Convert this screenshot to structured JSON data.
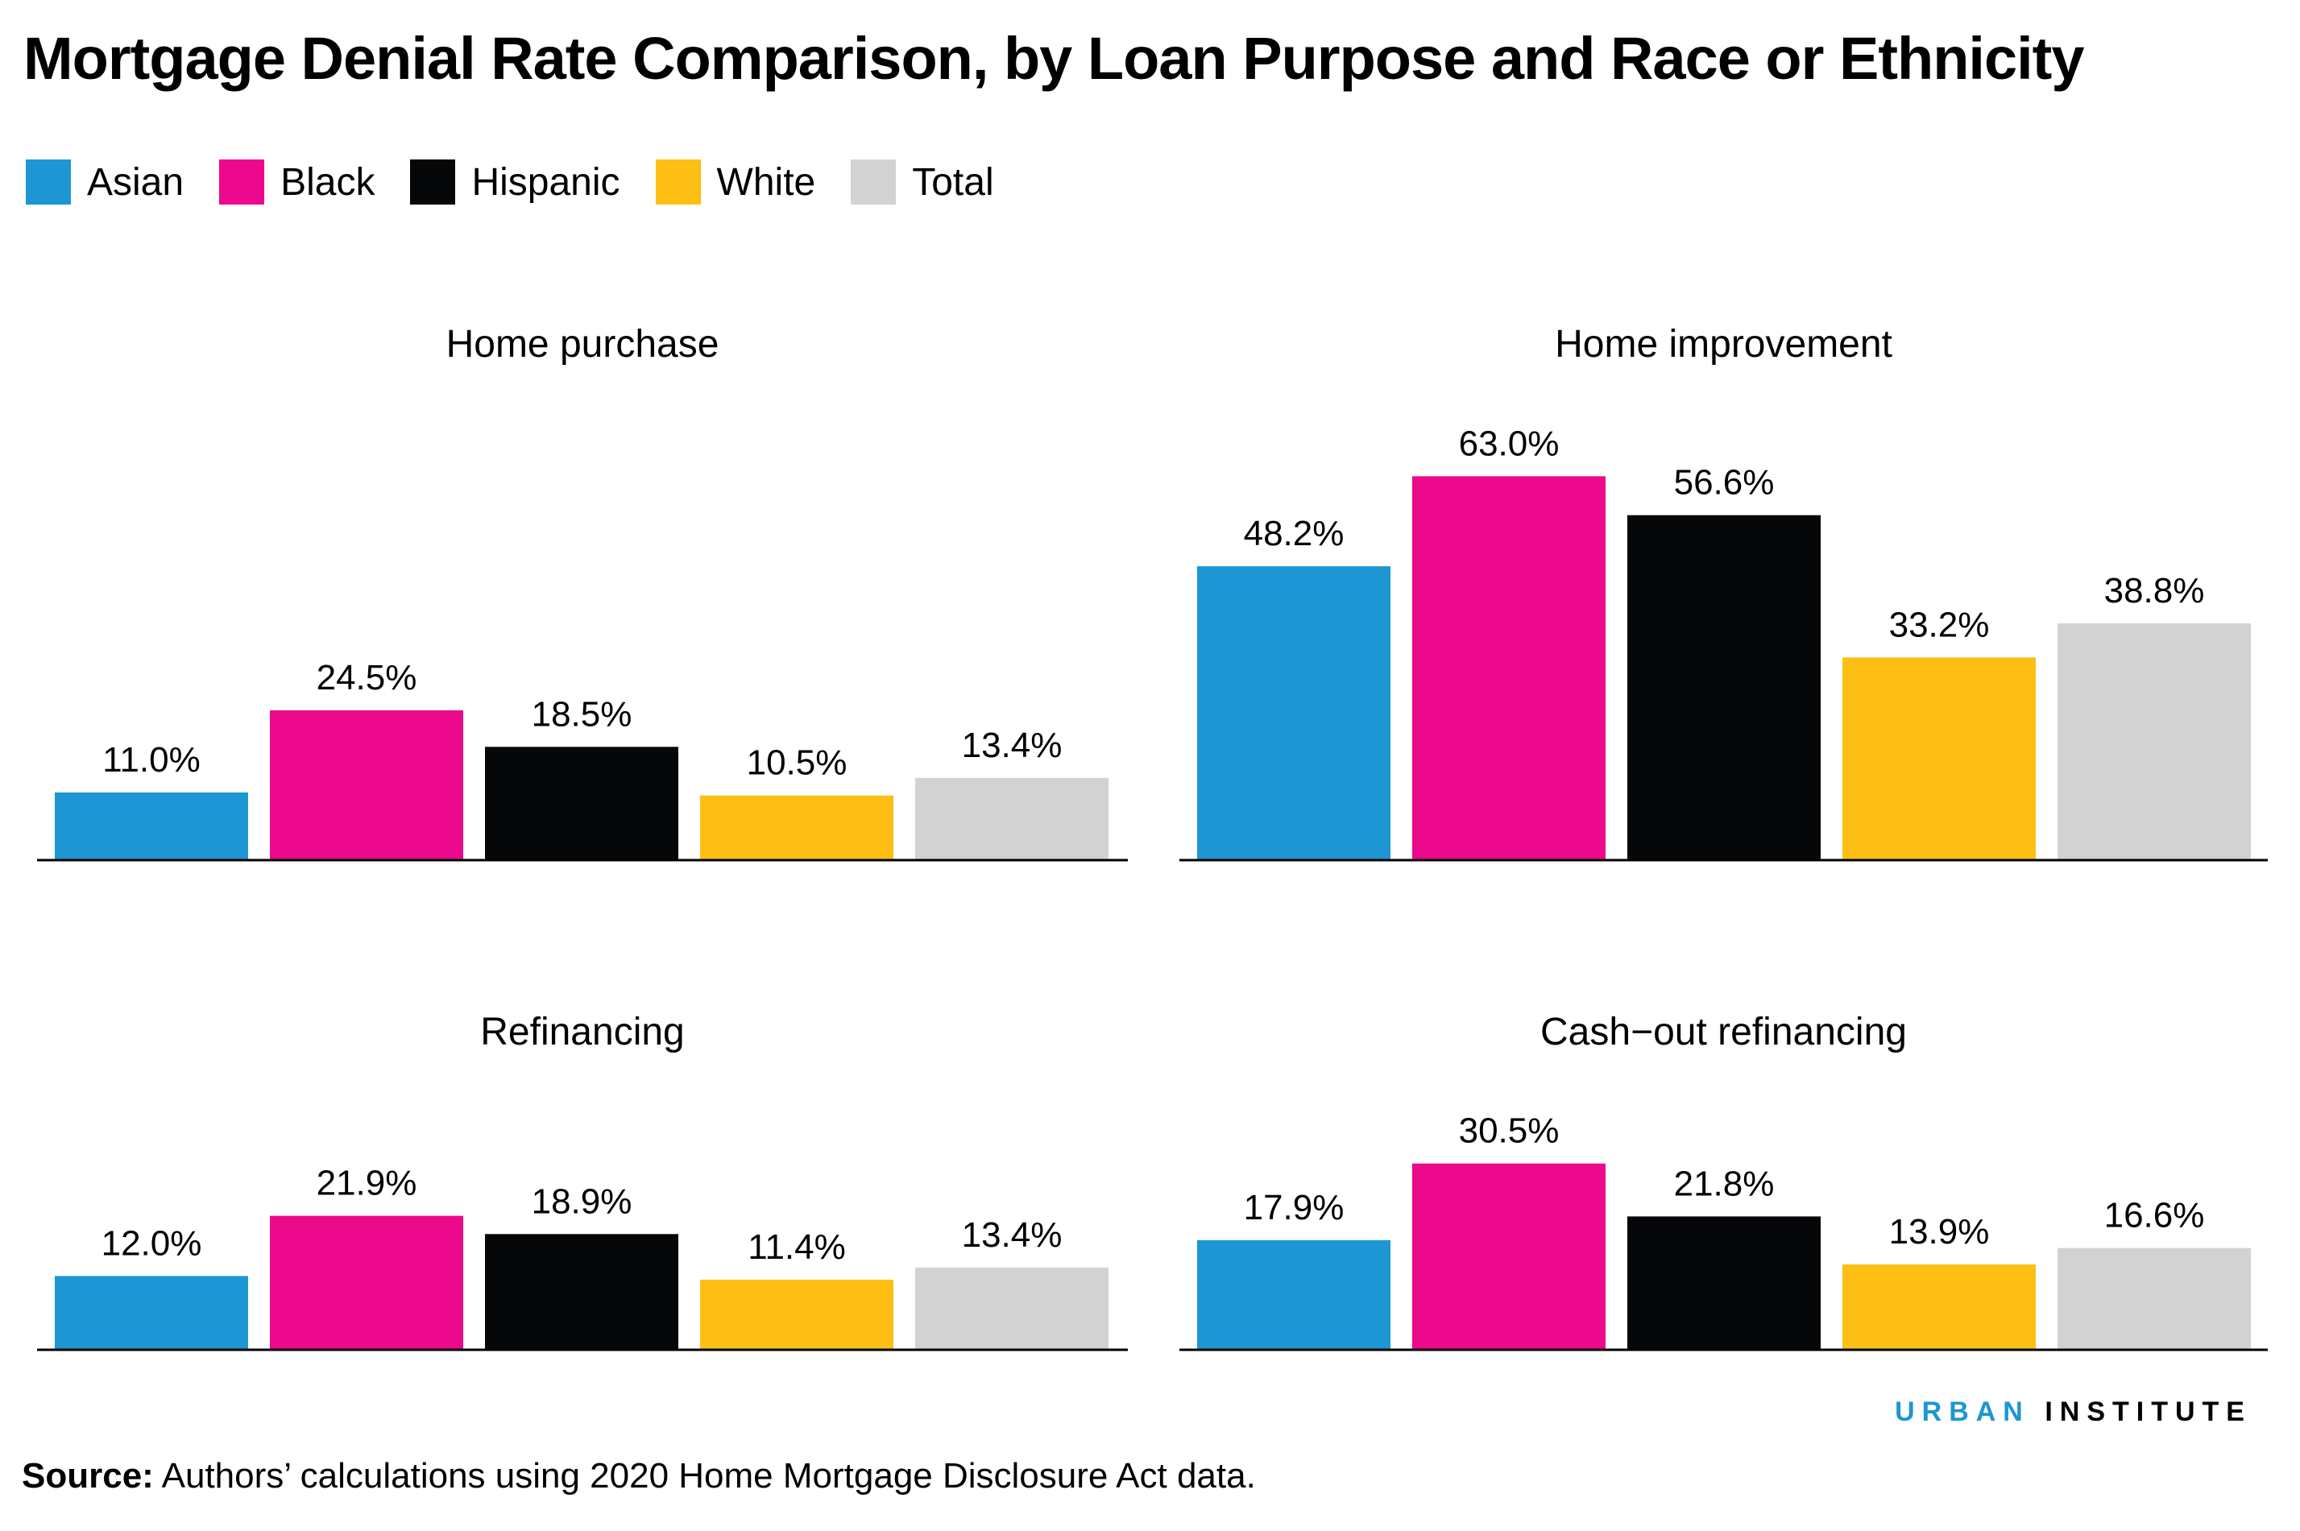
{
  "title": "Mortgage Denial Rate Comparison, by Loan Purpose and Race or Ethnicity",
  "legend": [
    {
      "label": "Asian",
      "color": "#1d96d3"
    },
    {
      "label": "Black",
      "color": "#ec098c"
    },
    {
      "label": "Hispanic",
      "color": "#060709"
    },
    {
      "label": "White",
      "color": "#fdbf14"
    },
    {
      "label": "Total",
      "color": "#d2d2d2"
    }
  ],
  "chart_data": [
    {
      "type": "bar",
      "title": "Home purchase",
      "categories": [
        "Asian",
        "Black",
        "Hispanic",
        "White",
        "Total"
      ],
      "values": [
        11.0,
        24.5,
        18.5,
        10.5,
        13.4
      ],
      "labels": [
        "11.0%",
        "24.5%",
        "18.5%",
        "10.5%",
        "13.4%"
      ],
      "ylim": [
        0,
        70
      ],
      "grid": false
    },
    {
      "type": "bar",
      "title": "Home improvement",
      "categories": [
        "Asian",
        "Black",
        "Hispanic",
        "White",
        "Total"
      ],
      "values": [
        48.2,
        63.0,
        56.6,
        33.2,
        38.8
      ],
      "labels": [
        "48.2%",
        "63.0%",
        "56.6%",
        "33.2%",
        "38.8%"
      ],
      "ylim": [
        0,
        70
      ],
      "grid": false
    },
    {
      "type": "bar",
      "title": "Refinancing",
      "categories": [
        "Asian",
        "Black",
        "Hispanic",
        "White",
        "Total"
      ],
      "values": [
        12.0,
        21.9,
        18.9,
        11.4,
        13.4
      ],
      "labels": [
        "12.0%",
        "21.9%",
        "18.9%",
        "11.4%",
        "13.4%"
      ],
      "ylim": [
        0,
        70
      ],
      "grid": false
    },
    {
      "type": "bar",
      "title": "Cash−out refinancing",
      "categories": [
        "Asian",
        "Black",
        "Hispanic",
        "White",
        "Total"
      ],
      "values": [
        17.9,
        30.5,
        21.8,
        13.9,
        16.6
      ],
      "labels": [
        "17.9%",
        "30.5%",
        "21.8%",
        "13.9%",
        "16.6%"
      ],
      "ylim": [
        0,
        70
      ],
      "grid": false
    }
  ],
  "logo": {
    "part1": "URBAN",
    "part2": "INSTITUTE"
  },
  "source": {
    "label": "Source:",
    "text": " Authors’ calculations using 2020 Home Mortgage Disclosure Act data."
  }
}
